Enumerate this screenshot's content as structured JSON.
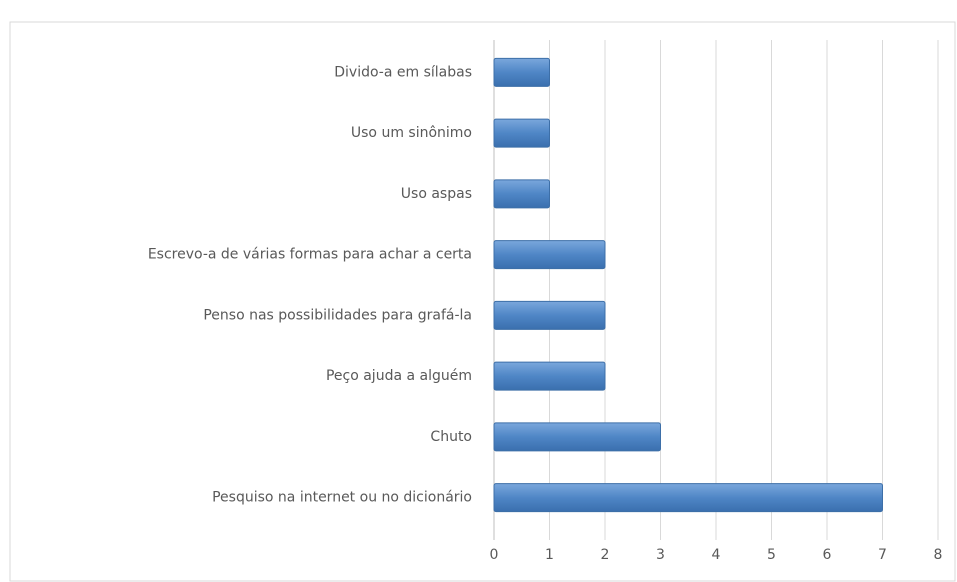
{
  "chart_data": {
    "type": "hbar",
    "categories": [
      "Divido-a em sílabas",
      "Uso um sinônimo",
      "Uso aspas",
      "Escrevo-a de várias formas para achar a certa",
      "Penso nas possibilidades para grafá-la",
      "Peço ajuda a alguém",
      "Chuto",
      "Pesquiso na internet ou no dicionário"
    ],
    "values": [
      1,
      1,
      1,
      2,
      2,
      2,
      3,
      7
    ],
    "color": "#4f86c6",
    "xlim": [
      0,
      8
    ],
    "xticks": [
      0,
      1,
      2,
      3,
      4,
      5,
      6,
      7,
      8
    ],
    "grid": true
  }
}
